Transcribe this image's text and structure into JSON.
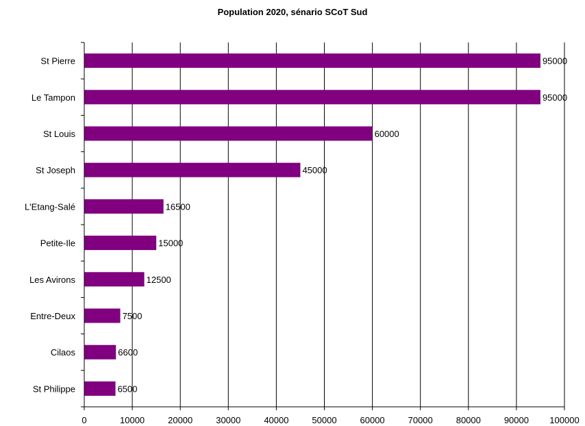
{
  "chart_data": {
    "type": "bar",
    "orientation": "horizontal",
    "title": "Population 2020, sénario SCoT Sud",
    "xlabel": "",
    "ylabel": "",
    "categories": [
      "St Pierre",
      "Le Tampon",
      "St Louis",
      "St Joseph",
      "L'Etang-Salé",
      "Petite-Ile",
      "Les Avirons",
      "Entre-Deux",
      "Cilaos",
      "St Philippe"
    ],
    "values": [
      95000,
      95000,
      60000,
      45000,
      16500,
      15000,
      12500,
      7500,
      6600,
      6500
    ],
    "value_labels": [
      "95000",
      "95000",
      "60000",
      "45000",
      "16500",
      "15000",
      "12500",
      "7500",
      "6600",
      "6500"
    ],
    "xlim": [
      0,
      100000
    ],
    "xticks": [
      "0",
      "10000",
      "20000",
      "30000",
      "40000",
      "50000",
      "60000",
      "70000",
      "80000",
      "90000",
      "100000"
    ],
    "grid": true,
    "legend": "none",
    "bar_color": "#800080"
  }
}
